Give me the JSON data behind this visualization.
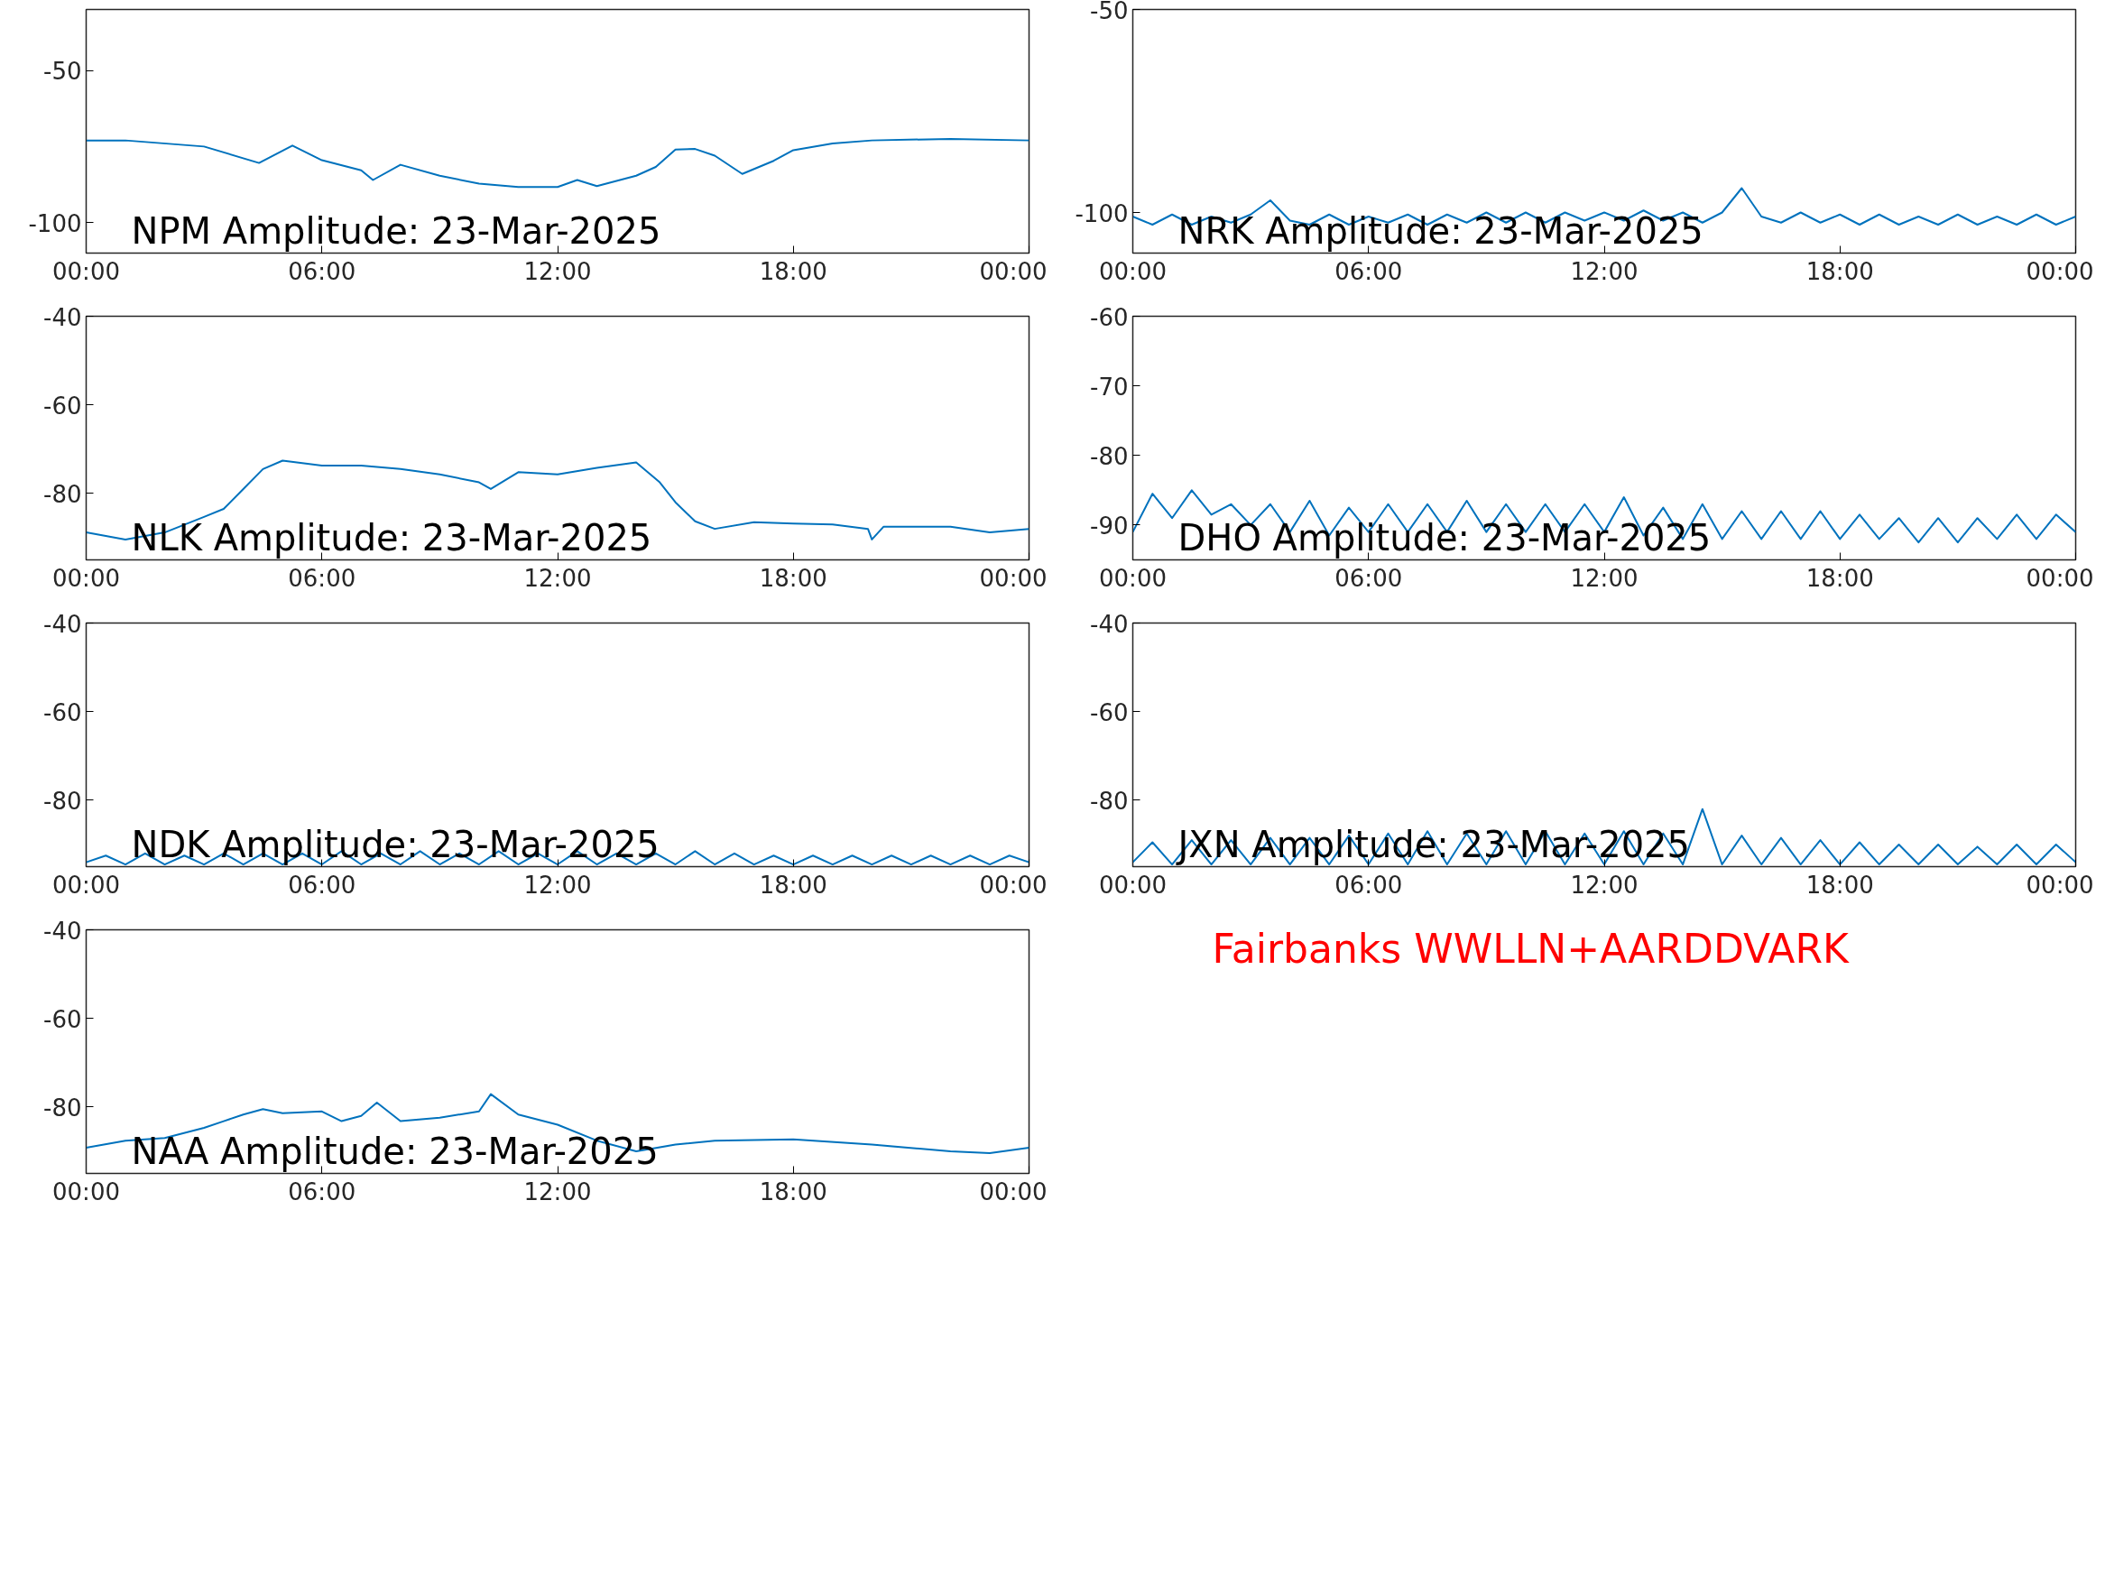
{
  "chart_data": [
    {
      "type": "line",
      "title": "NPM Amplitude: 23-Mar-2025",
      "xlim": [
        0,
        24
      ],
      "ylim": [
        -110,
        -30
      ],
      "xticks": [
        {
          "value": 0,
          "label": "00:00"
        },
        {
          "value": 6,
          "label": "06:00"
        },
        {
          "value": 12,
          "label": "12:00"
        },
        {
          "value": 18,
          "label": "18:00"
        },
        {
          "value": 24,
          "label": "00:00"
        }
      ],
      "yticks": [
        -50,
        -100
      ],
      "series": [
        {
          "color": "#0072bd",
          "x": [
            0,
            1,
            3,
            4.4,
            5.25,
            6,
            7,
            7.3,
            8,
            9,
            10,
            11,
            12,
            12.5,
            13,
            14,
            14.5,
            15,
            15.5,
            16,
            16.7,
            17.5,
            18,
            19,
            20,
            22,
            24
          ],
          "values": [
            -73,
            -73,
            -75,
            -80.4,
            -74.7,
            -79.5,
            -82.8,
            -86,
            -81,
            -84.6,
            -87.2,
            -88.3,
            -88.3,
            -86,
            -88,
            -84.6,
            -81.7,
            -76,
            -75.8,
            -78,
            -84,
            -79.7,
            -76.2,
            -74,
            -73,
            -72.5,
            -73
          ]
        }
      ]
    },
    {
      "type": "line",
      "title": "NRK Amplitude: 23-Mar-2025",
      "xlim": [
        0,
        24
      ],
      "ylim": [
        -110,
        -50
      ],
      "xticks": [
        {
          "value": 0,
          "label": "00:00"
        },
        {
          "value": 6,
          "label": "06:00"
        },
        {
          "value": 12,
          "label": "12:00"
        },
        {
          "value": 18,
          "label": "18:00"
        },
        {
          "value": 24,
          "label": "00:00"
        }
      ],
      "yticks": [
        -50,
        -100
      ],
      "series": [
        {
          "color": "#0072bd",
          "x": [
            0,
            0.5,
            1,
            1.5,
            2,
            2.5,
            3,
            3.5,
            4,
            4.5,
            5,
            5.5,
            6,
            6.5,
            7,
            7.5,
            8,
            8.5,
            9,
            9.5,
            10,
            10.5,
            11,
            11.5,
            12,
            12.5,
            13,
            13.5,
            14,
            14.5,
            15,
            15.5,
            16,
            16.5,
            17,
            17.5,
            18,
            18.5,
            19,
            19.5,
            20,
            20.5,
            21,
            21.5,
            22,
            22.5,
            23,
            23.5,
            24
          ],
          "values": [
            -101,
            -103,
            -100.5,
            -103,
            -101,
            -102.5,
            -100.5,
            -97,
            -102,
            -103,
            -100.5,
            -103,
            -101,
            -102.5,
            -100.5,
            -103,
            -100.5,
            -102.5,
            -100,
            -102.5,
            -100,
            -102.5,
            -100,
            -102,
            -100,
            -102,
            -99.5,
            -102,
            -100,
            -102.5,
            -100,
            -94,
            -101,
            -102.5,
            -100,
            -102.5,
            -100.5,
            -103,
            -100.5,
            -103,
            -101,
            -103,
            -100.5,
            -103,
            -101,
            -103,
            -100.5,
            -103,
            -101
          ]
        }
      ]
    },
    {
      "type": "line",
      "title": "NLK Amplitude: 23-Mar-2025",
      "xlim": [
        0,
        24
      ],
      "ylim": [
        -95,
        -40
      ],
      "xticks": [
        {
          "value": 0,
          "label": "00:00"
        },
        {
          "value": 6,
          "label": "06:00"
        },
        {
          "value": 12,
          "label": "12:00"
        },
        {
          "value": 18,
          "label": "18:00"
        },
        {
          "value": 24,
          "label": "00:00"
        }
      ],
      "yticks": [
        -40,
        -60,
        -80
      ],
      "series": [
        {
          "color": "#0072bd",
          "x": [
            0,
            1,
            2,
            3,
            3.5,
            4,
            4.5,
            5,
            6,
            7,
            8,
            9,
            10,
            10.3,
            11,
            12,
            13,
            14,
            14.6,
            15,
            15.5,
            16,
            17,
            18,
            19,
            19.9,
            20,
            20.3,
            22,
            23,
            24
          ],
          "values": [
            -88.8,
            -90.4,
            -88.8,
            -85.3,
            -83.5,
            -79,
            -74.5,
            -72.6,
            -73.7,
            -73.7,
            -74.5,
            -75.7,
            -77.5,
            -79,
            -75.2,
            -75.7,
            -74.2,
            -73,
            -77.5,
            -82,
            -86.3,
            -88,
            -86.5,
            -86.8,
            -87,
            -88,
            -90.4,
            -87.5,
            -87.5,
            -88.8,
            -88
          ]
        }
      ]
    },
    {
      "type": "line",
      "title": "DHO Amplitude: 23-Mar-2025",
      "xlim": [
        0,
        24
      ],
      "ylim": [
        -95,
        -60
      ],
      "xticks": [
        {
          "value": 0,
          "label": "00:00"
        },
        {
          "value": 6,
          "label": "06:00"
        },
        {
          "value": 12,
          "label": "12:00"
        },
        {
          "value": 18,
          "label": "18:00"
        },
        {
          "value": 24,
          "label": "00:00"
        }
      ],
      "yticks": [
        -60,
        -70,
        -80,
        -90
      ],
      "series": [
        {
          "color": "#0072bd",
          "x": [
            0,
            0.5,
            1,
            1.5,
            2,
            2.5,
            3,
            3.5,
            4,
            4.5,
            5,
            5.5,
            6,
            6.5,
            7,
            7.5,
            8,
            8.5,
            9,
            9.5,
            10,
            10.5,
            11,
            11.5,
            12,
            12.5,
            13,
            13.5,
            14,
            14.5,
            15,
            15.5,
            16,
            16.5,
            17,
            17.5,
            18,
            18.5,
            19,
            19.5,
            20,
            20.5,
            21,
            21.5,
            22,
            22.5,
            23,
            23.5,
            24
          ],
          "values": [
            -91,
            -85.5,
            -89,
            -85,
            -88.5,
            -87,
            -90,
            -87,
            -91,
            -86.5,
            -91.5,
            -87.5,
            -91,
            -87,
            -91,
            -87,
            -91,
            -86.5,
            -91,
            -87,
            -91,
            -87,
            -91,
            -87,
            -91,
            -86,
            -91.5,
            -87.5,
            -92,
            -87,
            -92,
            -88,
            -92,
            -88,
            -92,
            -88,
            -92,
            -88.5,
            -92,
            -89,
            -92.5,
            -89,
            -92.5,
            -89,
            -92,
            -88.5,
            -92,
            -88.5,
            -91
          ]
        }
      ]
    },
    {
      "type": "line",
      "title": "NDK Amplitude: 23-Mar-2025",
      "xlim": [
        0,
        24
      ],
      "ylim": [
        -95,
        -40
      ],
      "xticks": [
        {
          "value": 0,
          "label": "00:00"
        },
        {
          "value": 6,
          "label": "06:00"
        },
        {
          "value": 12,
          "label": "12:00"
        },
        {
          "value": 18,
          "label": "18:00"
        },
        {
          "value": 24,
          "label": "00:00"
        }
      ],
      "yticks": [
        -40,
        -60,
        -80
      ],
      "series": [
        {
          "color": "#0072bd",
          "x": [
            0,
            0.5,
            1,
            1.5,
            2,
            2.5,
            3,
            3.5,
            4,
            4.5,
            5,
            5.5,
            6,
            6.5,
            7,
            7.5,
            8,
            8.5,
            9,
            9.5,
            10,
            10.5,
            11,
            11.5,
            12,
            12.5,
            13,
            13.5,
            14,
            14.5,
            15,
            15.5,
            16,
            16.5,
            17,
            17.5,
            18,
            18.5,
            19,
            19.5,
            20,
            20.5,
            21,
            21.5,
            22,
            22.5,
            23,
            23.5,
            24
          ],
          "values": [
            -94,
            -92.5,
            -94.5,
            -92,
            -94.5,
            -92.5,
            -94.5,
            -92,
            -94.5,
            -92,
            -94.5,
            -92,
            -94.5,
            -91.5,
            -94.5,
            -92,
            -94.5,
            -91.5,
            -94.5,
            -92,
            -94.5,
            -91.5,
            -94.5,
            -92,
            -94.5,
            -91.5,
            -94.5,
            -92,
            -94.5,
            -92,
            -94.5,
            -91.5,
            -94.5,
            -92,
            -94.5,
            -92.5,
            -94.5,
            -92.5,
            -94.5,
            -92.5,
            -94.5,
            -92.5,
            -94.5,
            -92.5,
            -94.5,
            -92.5,
            -94.5,
            -92.5,
            -94
          ]
        }
      ]
    },
    {
      "type": "line",
      "title": "JXN Amplitude: 23-Mar-2025",
      "xlim": [
        0,
        24
      ],
      "ylim": [
        -95,
        -40
      ],
      "xticks": [
        {
          "value": 0,
          "label": "00:00"
        },
        {
          "value": 6,
          "label": "06:00"
        },
        {
          "value": 12,
          "label": "12:00"
        },
        {
          "value": 18,
          "label": "18:00"
        },
        {
          "value": 24,
          "label": "00:00"
        }
      ],
      "yticks": [
        -40,
        -60,
        -80
      ],
      "series": [
        {
          "color": "#0072bd",
          "x": [
            0,
            0.5,
            1,
            1.5,
            2,
            2.5,
            3,
            3.5,
            4,
            4.5,
            5,
            5.5,
            6,
            6.5,
            7,
            7.5,
            8,
            8.5,
            9,
            9.5,
            10,
            10.5,
            11,
            11.5,
            12,
            12.5,
            13,
            13.5,
            14,
            14.5,
            15,
            15.5,
            16,
            16.5,
            17,
            17.5,
            18,
            18.5,
            19,
            19.5,
            20,
            20.5,
            21,
            21.5,
            22,
            22.5,
            23,
            23.5,
            24
          ],
          "values": [
            -94,
            -89.5,
            -94.5,
            -89,
            -94.5,
            -89,
            -94.5,
            -88.5,
            -94.5,
            -88.5,
            -94.5,
            -88,
            -94.5,
            -87.5,
            -94.5,
            -87,
            -94.5,
            -87.5,
            -94.5,
            -87,
            -94.5,
            -87,
            -94.5,
            -87.5,
            -94.5,
            -87,
            -94.5,
            -87.5,
            -94.5,
            -82,
            -94.5,
            -88,
            -94.5,
            -88.5,
            -94.5,
            -89,
            -94.5,
            -89.5,
            -94.5,
            -90,
            -94.5,
            -90,
            -94.5,
            -90.5,
            -94.5,
            -90,
            -94.5,
            -90,
            -94
          ]
        }
      ]
    },
    {
      "type": "line",
      "title": "NAA Amplitude: 23-Mar-2025",
      "xlim": [
        0,
        24
      ],
      "ylim": [
        -95,
        -40
      ],
      "xticks": [
        {
          "value": 0,
          "label": "00:00"
        },
        {
          "value": 6,
          "label": "06:00"
        },
        {
          "value": 12,
          "label": "12:00"
        },
        {
          "value": 18,
          "label": "18:00"
        },
        {
          "value": 24,
          "label": "00:00"
        }
      ],
      "yticks": [
        -40,
        -60,
        -80
      ],
      "series": [
        {
          "color": "#0072bd",
          "x": [
            0,
            1,
            2,
            3,
            3.5,
            4,
            4.5,
            5,
            6,
            6.5,
            7,
            7.4,
            8,
            9,
            10,
            10.3,
            11,
            12,
            13,
            14,
            15,
            16,
            18,
            20,
            22,
            23,
            24
          ],
          "values": [
            -89.2,
            -87.6,
            -87,
            -84.7,
            -83.2,
            -81.7,
            -80.5,
            -81.4,
            -81,
            -83.2,
            -82,
            -79,
            -83.2,
            -82.4,
            -81,
            -77.1,
            -81.7,
            -84,
            -87.6,
            -90,
            -88.5,
            -87.6,
            -87.3,
            -88.5,
            -90,
            -90.4,
            -89.2
          ]
        }
      ]
    },
    {
      "type": "other",
      "annotations": [
        "Fairbanks WWLLN+AARDDVARK"
      ]
    }
  ]
}
